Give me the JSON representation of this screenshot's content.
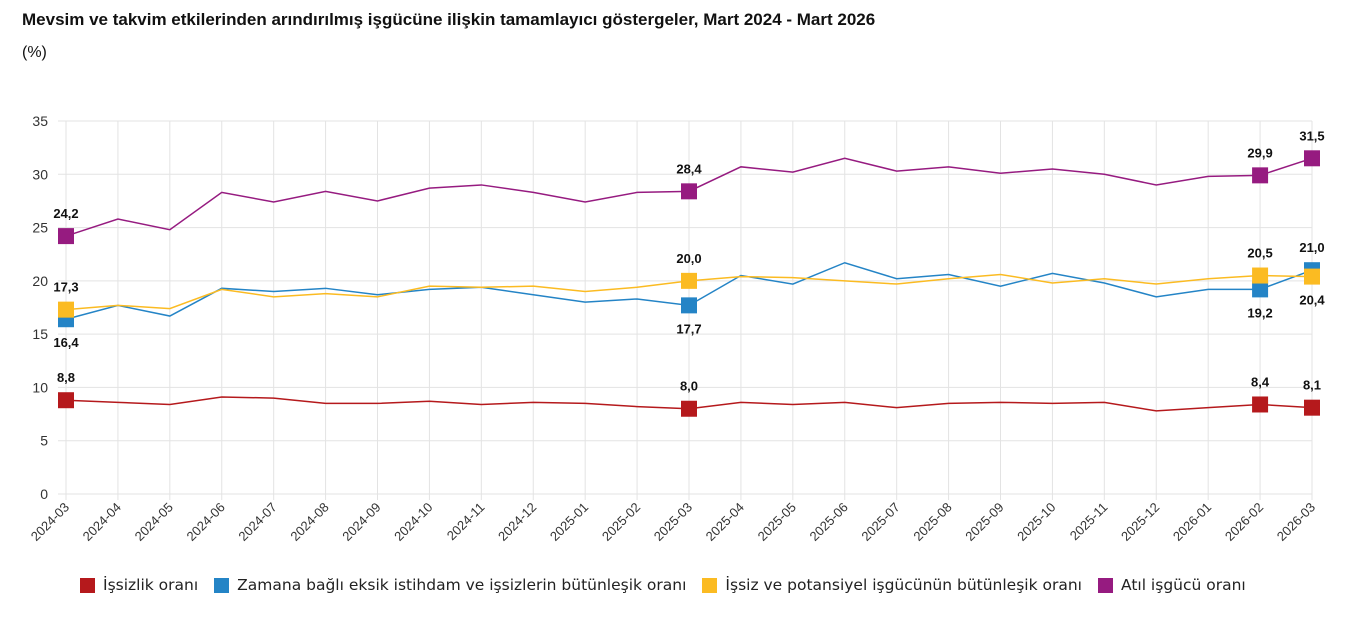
{
  "chart_data": {
    "type": "line",
    "title": "Mevsim ve takvim etkilerinden arındırılmış işgücüne ilişkin tamamlayıcı göstergeler, Mart 2024 - Mart 2026",
    "unit": "(%)",
    "ylim": [
      0,
      35
    ],
    "yticks": [
      0,
      5,
      10,
      15,
      20,
      25,
      30,
      35
    ],
    "grid": true,
    "legend_position": "bottom",
    "categories": [
      "2024-03",
      "2024-04",
      "2024-05",
      "2024-06",
      "2024-07",
      "2024-08",
      "2024-09",
      "2024-10",
      "2024-11",
      "2024-12",
      "2025-01",
      "2025-02",
      "2025-03",
      "2025-04",
      "2025-05",
      "2025-06",
      "2025-07",
      "2025-08",
      "2025-09",
      "2025-10",
      "2025-11",
      "2025-12",
      "2026-01",
      "2026-02",
      "2026-03"
    ],
    "labeled_indices": [
      0,
      12,
      23,
      24
    ],
    "series": [
      {
        "name": "İşsizlik oranı",
        "color": "#b5191c",
        "values": [
          8.8,
          8.6,
          8.4,
          9.1,
          9.0,
          8.5,
          8.5,
          8.7,
          8.4,
          8.6,
          8.5,
          8.2,
          8.0,
          8.6,
          8.4,
          8.6,
          8.1,
          8.5,
          8.6,
          8.5,
          8.6,
          7.8,
          8.1,
          8.4,
          8.1
        ],
        "labels": [
          "8,8",
          "8,0",
          "8,4",
          "8,1"
        ],
        "label_side": [
          "above",
          "above",
          "above",
          "above"
        ]
      },
      {
        "name": "Zamana bağlı eksik istihdam ve işsizlerin bütünleşik oranı",
        "color": "#2484c6",
        "values": [
          16.4,
          17.7,
          16.7,
          19.3,
          19.0,
          19.3,
          18.7,
          19.2,
          19.4,
          18.7,
          18.0,
          18.3,
          17.7,
          20.5,
          19.7,
          21.7,
          20.2,
          20.6,
          19.5,
          20.7,
          19.8,
          18.5,
          19.2,
          19.2,
          21.0
        ],
        "labels": [
          "16,4",
          "17,7",
          "19,2",
          "21,0"
        ],
        "label_side": [
          "below",
          "below",
          "below",
          "above"
        ]
      },
      {
        "name": "İşsiz ve potansiyel işgücünün bütünleşik oranı",
        "color": "#fbbb22",
        "values": [
          17.3,
          17.7,
          17.4,
          19.2,
          18.5,
          18.8,
          18.5,
          19.5,
          19.4,
          19.5,
          19.0,
          19.4,
          20.0,
          20.4,
          20.3,
          20.0,
          19.7,
          20.2,
          20.6,
          19.8,
          20.2,
          19.7,
          20.2,
          20.5,
          20.4
        ],
        "labels": [
          "17,3",
          "20,0",
          "20,5",
          "20,4"
        ],
        "label_side": [
          "above",
          "above",
          "above",
          "below"
        ]
      },
      {
        "name": "Atıl işgücü oranı",
        "color": "#961b80",
        "values": [
          24.2,
          25.8,
          24.8,
          28.3,
          27.4,
          28.4,
          27.5,
          28.7,
          29.0,
          28.3,
          27.4,
          28.3,
          28.4,
          30.7,
          30.2,
          31.5,
          30.3,
          30.7,
          30.1,
          30.5,
          30.0,
          29.0,
          29.8,
          29.9,
          31.5
        ],
        "labels": [
          "24,2",
          "28,4",
          "29,9",
          "31,5"
        ],
        "label_side": [
          "above",
          "above",
          "above",
          "above"
        ]
      }
    ]
  }
}
